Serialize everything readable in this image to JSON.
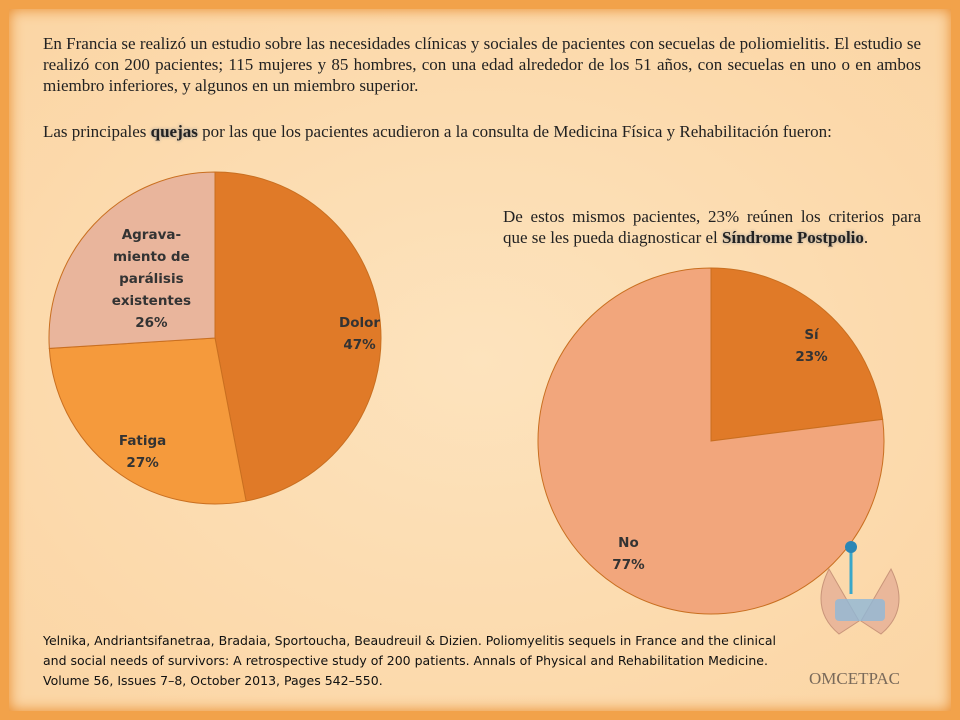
{
  "text": {
    "paragraph1": "En Francia se realizó un estudio sobre las necesidades clínicas y sociales de pacientes con secuelas de poliomielitis. El estudio se realizó con 200 pacientes; 115 mujeres y 85 hombres, con una edad alrededor de los 51 años, con secuelas en uno o en ambos miembro inferiores, y algunos en un miembro superior.",
    "paragraph2": [
      "Las principales ",
      "quejas",
      " por las que  los pacientes acudieron a la consulta de Medicina Física y Rehabilitación fueron:"
    ],
    "paragraph3": [
      "De estos mismos pacientes, 23% reúnen los criterios para que se les pueda diagnosticar el ",
      "Síndrome Postpolio",
      "."
    ],
    "citation": "Yelnika, Andriantsifanetraa, Bradaia, Sportoucha, Beaudreuil & Dizien. Poliomyelitis sequels in France and the clinical and social needs of survivors: A retrospective study of 200 patients. Annals of Physical and Rehabilitation Medicine. Volume 56, Issues 7–8, October 2013, Pages 542–550.",
    "logo": "OMCETPAC"
  },
  "chart_data": [
    {
      "type": "pie",
      "categories": [
        "Dolor",
        "Fatiga",
        "Agrava-miento de parálisis existentes"
      ],
      "values": [
        47,
        27,
        26
      ],
      "value_labels": [
        "47%",
        "27%",
        "26%"
      ],
      "colors": [
        "#e07a28",
        "#f59a3c",
        "#e9b59c"
      ]
    },
    {
      "type": "pie",
      "categories": [
        "Sí",
        "No"
      ],
      "values": [
        23,
        77
      ],
      "value_labels": [
        "23%",
        "77%"
      ],
      "colors": [
        "#e07a28",
        "#f2a67c"
      ]
    }
  ]
}
